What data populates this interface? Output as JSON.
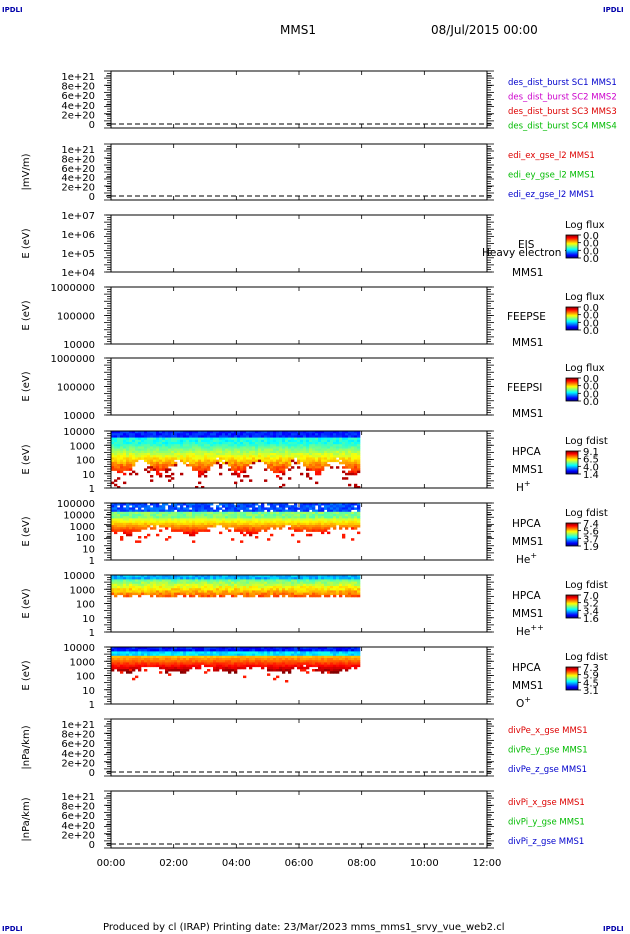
{
  "corner_tl": "IPDLI",
  "corner_tr": "IPDLI",
  "corner_bl": "IPDLI",
  "corner_br": "IPDLI",
  "header": {
    "spacecraft": "MMS1",
    "datetime": "08/Jul/2015 00:00"
  },
  "footer": {
    "text": "Produced by cl (IRAP)   Printing date: 23/Mar/2023    mms_mms1_srvy_vue_web2.cl"
  },
  "colors": {
    "mms1": "#0000cc",
    "mms2": "#cc00cc",
    "mms3": "#dd0000",
    "mms4": "#00bb00"
  },
  "chart_data": [
    {
      "id": "p1",
      "type": "line",
      "ylabel": "",
      "yticks": [
        "1e+21",
        "8e+20",
        "6e+20",
        "4e+20",
        "2e+20",
        "0"
      ],
      "legend": [
        {
          "text": "des_dist_burst SC1 MMS1",
          "color": "#0000cc"
        },
        {
          "text": "des_dist_burst SC2 MMS2",
          "color": "#cc00cc"
        },
        {
          "text": "des_dist_burst SC3 MMS3",
          "color": "#dd0000"
        },
        {
          "text": "des_dist_burst SC4 MMS4",
          "color": "#00bb00"
        }
      ]
    },
    {
      "id": "p2",
      "type": "line",
      "ylabel": "|mV/m)",
      "yticks": [
        "1e+21",
        "8e+20",
        "6e+20",
        "4e+20",
        "2e+20",
        "0"
      ],
      "legend": [
        {
          "text": "edi_ex_gse_l2 MMS1",
          "color": "#dd0000"
        },
        {
          "text": "edi_ey_gse_l2 MMS1",
          "color": "#00bb00"
        },
        {
          "text": "edi_ez_gse_l2 MMS1",
          "color": "#0000cc"
        }
      ]
    },
    {
      "id": "p3",
      "type": "heatmap",
      "ylabel": "E (eV)",
      "yticks": [
        "1e+07",
        "1e+06",
        "1e+05",
        "1e+04"
      ],
      "inst": [
        "EIS",
        "MMS1"
      ],
      "overlay": "Heavy electron to",
      "cb_title": "Log flux",
      "cb_ticks": [
        "0.0",
        "0.0",
        "0.0",
        "0.0"
      ]
    },
    {
      "id": "p4",
      "type": "heatmap",
      "ylabel": "E (eV)",
      "yticks": [
        "1000000",
        "100000",
        "10000"
      ],
      "inst": [
        "FEEPSE",
        "MMS1"
      ],
      "cb_title": "Log flux",
      "cb_ticks": [
        "0.0",
        "0.0",
        "0.0",
        "0.0"
      ]
    },
    {
      "id": "p5",
      "type": "heatmap",
      "ylabel": "E (eV)",
      "yticks": [
        "1000000",
        "100000",
        "10000"
      ],
      "inst": [
        "FEEPSI",
        "MMS1"
      ],
      "cb_title": "Log flux",
      "cb_ticks": [
        "0.0",
        "0.0",
        "0.0",
        "0.0"
      ]
    },
    {
      "id": "p6",
      "type": "heatmap",
      "ylabel": "E (eV)",
      "yticks": [
        "10000",
        "1000",
        "100",
        "10",
        "1"
      ],
      "inst": [
        "HPCA",
        "MMS1"
      ],
      "species": "H",
      "species_sup": "+",
      "cb_title": "Log fdist",
      "cb_ticks": [
        "9.1",
        "6.5",
        "4.0",
        "1.4"
      ],
      "data_end": "08:00",
      "pattern": "hplus"
    },
    {
      "id": "p7",
      "type": "heatmap",
      "ylabel": "E (eV)",
      "yticks": [
        "100000",
        "10000",
        "1000",
        "100",
        "10",
        "1"
      ],
      "inst": [
        "HPCA",
        "MMS1"
      ],
      "species": "He",
      "species_sup": "+",
      "cb_title": "Log fdist",
      "cb_ticks": [
        "7.4",
        "5.6",
        "3.7",
        "1.9"
      ],
      "data_end": "08:00",
      "pattern": "heplus"
    },
    {
      "id": "p8",
      "type": "heatmap",
      "ylabel": "E (eV)",
      "yticks": [
        "10000",
        "1000",
        "100",
        "10",
        "1"
      ],
      "inst": [
        "HPCA",
        "MMS1"
      ],
      "species": "He",
      "species_sup": "++",
      "cb_title": "Log fdist",
      "cb_ticks": [
        "7.0",
        "5.2",
        "3.4",
        "1.6"
      ],
      "data_end": "08:00",
      "pattern": "hepp"
    },
    {
      "id": "p9",
      "type": "heatmap",
      "ylabel": "E (eV)",
      "yticks": [
        "10000",
        "1000",
        "100",
        "10",
        "1"
      ],
      "inst": [
        "HPCA",
        "MMS1"
      ],
      "species": "O",
      "species_sup": "+",
      "cb_title": "Log fdist",
      "cb_ticks": [
        "7.3",
        "5.9",
        "4.5",
        "3.1"
      ],
      "data_end": "08:00",
      "pattern": "oplus"
    },
    {
      "id": "p10",
      "type": "line",
      "ylabel": "|nPa/km)",
      "yticks": [
        "1e+21",
        "8e+20",
        "6e+20",
        "4e+20",
        "2e+20",
        "0"
      ],
      "legend": [
        {
          "text": "divPe_x_gse MMS1",
          "color": "#dd0000"
        },
        {
          "text": "divPe_y_gse MMS1",
          "color": "#00bb00"
        },
        {
          "text": "divPe_z_gse MMS1",
          "color": "#0000cc"
        }
      ]
    },
    {
      "id": "p11",
      "type": "line",
      "ylabel": "|nPa/km)",
      "yticks": [
        "1e+21",
        "8e+20",
        "6e+20",
        "4e+20",
        "2e+20",
        "0"
      ],
      "legend": [
        {
          "text": "divPi_x_gse MMS1",
          "color": "#dd0000"
        },
        {
          "text": "divPi_y_gse MMS1",
          "color": "#00bb00"
        },
        {
          "text": "divPi_z_gse MMS1",
          "color": "#0000cc"
        }
      ],
      "xticks": [
        "00:00",
        "02:00",
        "04:00",
        "06:00",
        "08:00",
        "10:00",
        "12:00"
      ]
    }
  ]
}
